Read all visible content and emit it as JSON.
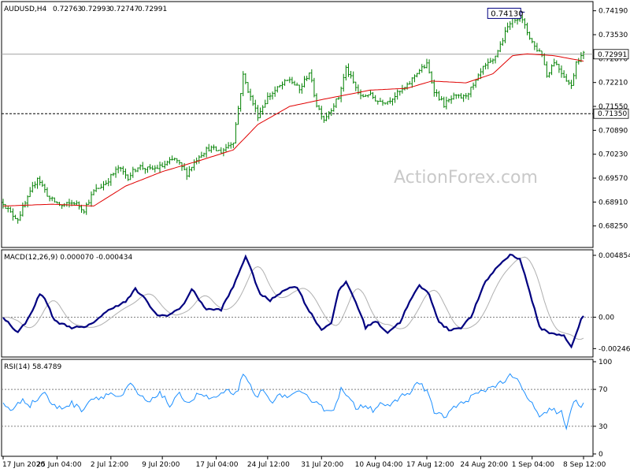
{
  "chart_data": [
    {
      "type": "candlestick",
      "title": "AUDUSD,H4",
      "ohlc_readout": [
        "0.72763",
        "0.72993",
        "0.72747",
        "0.72991"
      ],
      "ylim": [
        0.677,
        0.744
      ],
      "y_ticks": [
        {
          "value": 0.7419,
          "label": "0.74190"
        },
        {
          "value": 0.7353,
          "label": "0.73530"
        },
        {
          "value": 0.7287,
          "label": "0.72870"
        },
        {
          "value": 0.7221,
          "label": "0.72210"
        },
        {
          "value": 0.7155,
          "label": "0.71550"
        },
        {
          "value": 0.7089,
          "label": "0.70890"
        },
        {
          "value": 0.7023,
          "label": "0.70230"
        },
        {
          "value": 0.6957,
          "label": "0.69570"
        },
        {
          "value": 0.6891,
          "label": "0.68910"
        },
        {
          "value": 0.6825,
          "label": "0.68250"
        }
      ],
      "price_anchors": [
        [
          0,
          0.689
        ],
        [
          3,
          0.686
        ],
        [
          6,
          0.6845
        ],
        [
          10,
          0.69
        ],
        [
          14,
          0.696
        ],
        [
          19,
          0.69
        ],
        [
          24,
          0.688
        ],
        [
          29,
          0.689
        ],
        [
          33,
          0.687
        ],
        [
          37,
          0.692
        ],
        [
          42,
          0.6945
        ],
        [
          47,
          0.6985
        ],
        [
          51,
          0.696
        ],
        [
          55,
          0.699
        ],
        [
          60,
          0.698
        ],
        [
          65,
          0.699
        ],
        [
          70,
          0.701
        ],
        [
          75,
          0.697
        ],
        [
          80,
          0.702
        ],
        [
          84,
          0.704
        ],
        [
          89,
          0.703
        ],
        [
          94,
          0.706
        ],
        [
          98,
          0.724
        ],
        [
          101,
          0.718
        ],
        [
          104,
          0.713
        ],
        [
          108,
          0.718
        ],
        [
          113,
          0.721
        ],
        [
          117,
          0.723
        ],
        [
          121,
          0.72
        ],
        [
          125,
          0.725
        ],
        [
          128,
          0.716
        ],
        [
          131,
          0.712
        ],
        [
          134,
          0.715
        ],
        [
          137,
          0.718
        ],
        [
          140,
          0.726
        ],
        [
          143,
          0.722
        ],
        [
          146,
          0.718
        ],
        [
          149,
          0.719
        ],
        [
          153,
          0.717
        ],
        [
          157,
          0.717
        ],
        [
          161,
          0.719
        ],
        [
          165,
          0.721
        ],
        [
          169,
          0.725
        ],
        [
          173,
          0.727
        ],
        [
          176,
          0.72
        ],
        [
          180,
          0.716
        ],
        [
          184,
          0.718
        ],
        [
          188,
          0.718
        ],
        [
          192,
          0.721
        ],
        [
          196,
          0.726
        ],
        [
          200,
          0.728
        ],
        [
          204,
          0.734
        ],
        [
          207,
          0.739
        ],
        [
          211,
          0.7405
        ],
        [
          214,
          0.736
        ],
        [
          217,
          0.732
        ],
        [
          220,
          0.73
        ],
        [
          222,
          0.724
        ],
        [
          225,
          0.728
        ],
        [
          229,
          0.724
        ],
        [
          232,
          0.721
        ],
        [
          234,
          0.728
        ],
        [
          237,
          0.7299
        ]
      ],
      "moving_average_anchors": [
        [
          0,
          0.688
        ],
        [
          20,
          0.6885
        ],
        [
          37,
          0.688
        ],
        [
          50,
          0.6935
        ],
        [
          65,
          0.6975
        ],
        [
          80,
          0.7005
        ],
        [
          94,
          0.7035
        ],
        [
          104,
          0.7105
        ],
        [
          117,
          0.7155
        ],
        [
          131,
          0.7175
        ],
        [
          150,
          0.72
        ],
        [
          165,
          0.7205
        ],
        [
          175,
          0.7225
        ],
        [
          189,
          0.722
        ],
        [
          200,
          0.7245
        ],
        [
          208,
          0.7295
        ],
        [
          214,
          0.73
        ],
        [
          225,
          0.7295
        ],
        [
          237,
          0.728
        ]
      ],
      "horizontal_lines": [
        {
          "value": 0.72991,
          "label": "0.72991",
          "style": "solid"
        },
        {
          "value": 0.7135,
          "label": "0.71350",
          "style": "dashed"
        }
      ],
      "annotations": [
        {
          "text": "0.74130",
          "value": 0.7413,
          "bar": 212
        }
      ],
      "watermark": "ActionForex.com",
      "bar_count": 238
    },
    {
      "type": "line",
      "title": "MACD(12,26,9) 0.000070 -0.000434",
      "ylim": [
        -0.003,
        0.0051
      ],
      "y_ticks": [
        {
          "value": 0.004854,
          "label": "0.004854"
        },
        {
          "value": 0.0,
          "label": "0.00"
        },
        {
          "value": -0.002465,
          "label": "-0.002465"
        }
      ],
      "macd_anchors": [
        [
          0,
          0.0
        ],
        [
          6,
          -0.0012
        ],
        [
          10,
          -0.0002
        ],
        [
          15,
          0.0018
        ],
        [
          17,
          0.0015
        ],
        [
          21,
          -0.0003
        ],
        [
          28,
          -0.0008
        ],
        [
          34,
          -0.0008
        ],
        [
          38,
          -0.0002
        ],
        [
          45,
          0.0008
        ],
        [
          50,
          0.0012
        ],
        [
          54,
          0.0022
        ],
        [
          58,
          0.0014
        ],
        [
          63,
          0.0001
        ],
        [
          68,
          0.0002
        ],
        [
          73,
          0.0008
        ],
        [
          77,
          0.0022
        ],
        [
          83,
          0.0006
        ],
        [
          89,
          0.0006
        ],
        [
          94,
          0.0024
        ],
        [
          99,
          0.0048
        ],
        [
          105,
          0.0018
        ],
        [
          109,
          0.0013
        ],
        [
          115,
          0.0022
        ],
        [
          120,
          0.0024
        ],
        [
          124,
          0.0008
        ],
        [
          130,
          -0.001
        ],
        [
          134,
          -0.0004
        ],
        [
          137,
          0.002
        ],
        [
          140,
          0.0028
        ],
        [
          144,
          0.0012
        ],
        [
          148,
          -0.0008
        ],
        [
          152,
          -0.0003
        ],
        [
          157,
          -0.0012
        ],
        [
          162,
          -0.0004
        ],
        [
          166,
          0.0012
        ],
        [
          170,
          0.0025
        ],
        [
          174,
          0.0018
        ],
        [
          178,
          -0.0004
        ],
        [
          182,
          -0.001
        ],
        [
          187,
          -0.0008
        ],
        [
          191,
          0.0
        ],
        [
          197,
          0.0028
        ],
        [
          202,
          0.004
        ],
        [
          207,
          0.0049
        ],
        [
          211,
          0.0046
        ],
        [
          215,
          0.002
        ],
        [
          219,
          -0.0008
        ],
        [
          224,
          -0.0013
        ],
        [
          229,
          -0.0014
        ],
        [
          232,
          -0.0024
        ],
        [
          236,
          -0.0002
        ],
        [
          237,
          0.0001
        ]
      ],
      "signal_lag_bars": 6
    },
    {
      "type": "line",
      "title": "RSI(14) 58.4789",
      "ylim": [
        0,
        100
      ],
      "y_ticks": [
        {
          "value": 100,
          "label": "100"
        },
        {
          "value": 70,
          "label": "70"
        },
        {
          "value": 30,
          "label": "30"
        },
        {
          "value": 0,
          "label": "0"
        }
      ],
      "level_lines": [
        70,
        30
      ],
      "rsi_anchors": [
        [
          0,
          55
        ],
        [
          4,
          47
        ],
        [
          8,
          60
        ],
        [
          11,
          53
        ],
        [
          15,
          62
        ],
        [
          17,
          68
        ],
        [
          20,
          52
        ],
        [
          24,
          50
        ],
        [
          28,
          55
        ],
        [
          32,
          48
        ],
        [
          36,
          60
        ],
        [
          40,
          62
        ],
        [
          44,
          66
        ],
        [
          48,
          60
        ],
        [
          52,
          76
        ],
        [
          56,
          62
        ],
        [
          60,
          55
        ],
        [
          64,
          68
        ],
        [
          68,
          52
        ],
        [
          72,
          64
        ],
        [
          76,
          56
        ],
        [
          80,
          66
        ],
        [
          84,
          60
        ],
        [
          88,
          62
        ],
        [
          92,
          68
        ],
        [
          95,
          65
        ],
        [
          98,
          84
        ],
        [
          100,
          78
        ],
        [
          103,
          62
        ],
        [
          106,
          68
        ],
        [
          110,
          58
        ],
        [
          114,
          64
        ],
        [
          117,
          62
        ],
        [
          121,
          66
        ],
        [
          125,
          60
        ],
        [
          129,
          56
        ],
        [
          132,
          45
        ],
        [
          135,
          50
        ],
        [
          138,
          70
        ],
        [
          141,
          60
        ],
        [
          144,
          50
        ],
        [
          148,
          54
        ],
        [
          151,
          48
        ],
        [
          154,
          56
        ],
        [
          158,
          50
        ],
        [
          162,
          62
        ],
        [
          166,
          67
        ],
        [
          170,
          78
        ],
        [
          174,
          64
        ],
        [
          176,
          45
        ],
        [
          180,
          40
        ],
        [
          184,
          50
        ],
        [
          188,
          56
        ],
        [
          192,
          63
        ],
        [
          196,
          68
        ],
        [
          200,
          74
        ],
        [
          204,
          78
        ],
        [
          207,
          84
        ],
        [
          210,
          80
        ],
        [
          213,
          65
        ],
        [
          216,
          55
        ],
        [
          219,
          38
        ],
        [
          222,
          45
        ],
        [
          224,
          50
        ],
        [
          226,
          45
        ],
        [
          228,
          45
        ],
        [
          230,
          26
        ],
        [
          233,
          58
        ],
        [
          236,
          52
        ],
        [
          237,
          58
        ]
      ]
    }
  ],
  "x_axis_labels": [
    {
      "label": "17 Jun 2020",
      "bar": 0
    },
    {
      "label": "25 Jun 04:00",
      "bar": 22
    },
    {
      "label": "2 Jul 12:00",
      "bar": 44
    },
    {
      "label": "9 Jul 20:00",
      "bar": 65
    },
    {
      "label": "17 Jul 04:00",
      "bar": 87
    },
    {
      "label": "24 Jul 12:00",
      "bar": 108
    },
    {
      "label": "31 Jul 20:00",
      "bar": 130
    },
    {
      "label": "10 Aug 04:00",
      "bar": 152
    },
    {
      "label": "17 Aug 12:00",
      "bar": 173
    },
    {
      "label": "24 Aug 20:00",
      "bar": 195
    },
    {
      "label": "1 Sep 04:00",
      "bar": 216
    },
    {
      "label": "8 Sep 12:00",
      "bar": 238
    }
  ],
  "colors": {
    "candle": "#008000",
    "moving_average": "#e00000",
    "macd": "#000080",
    "signal": "#b0b0b0",
    "rsi": "#1e90ff",
    "grid_line": "#808080",
    "annotation_border": "#000080"
  }
}
